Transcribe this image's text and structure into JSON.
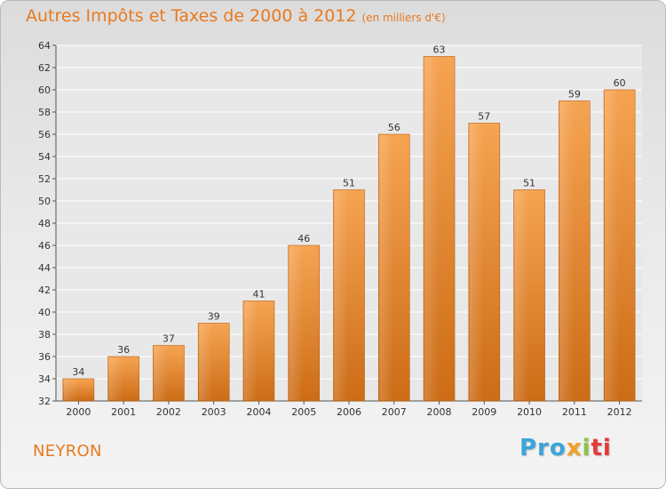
{
  "chart_data": {
    "type": "bar",
    "title": "Autres Impôts et Taxes de 2000 à 2012",
    "subtitle": "(en milliers d'€)",
    "categories": [
      "2000",
      "2001",
      "2002",
      "2003",
      "2004",
      "2005",
      "2006",
      "2007",
      "2008",
      "2009",
      "2010",
      "2011",
      "2012"
    ],
    "values": [
      34,
      36,
      37,
      39,
      41,
      46,
      51,
      56,
      63,
      57,
      51,
      59,
      60
    ],
    "ylim": [
      32,
      64
    ],
    "yticks": [
      32,
      34,
      36,
      38,
      40,
      42,
      44,
      46,
      48,
      50,
      52,
      54,
      56,
      58,
      60,
      62,
      64
    ],
    "grid": true,
    "bar_color": "#f0943a",
    "bar_color_dark": "#c86a17"
  },
  "footer": {
    "city": "NEYRON",
    "logo": [
      "Pro",
      "x",
      "i",
      "ti"
    ]
  }
}
